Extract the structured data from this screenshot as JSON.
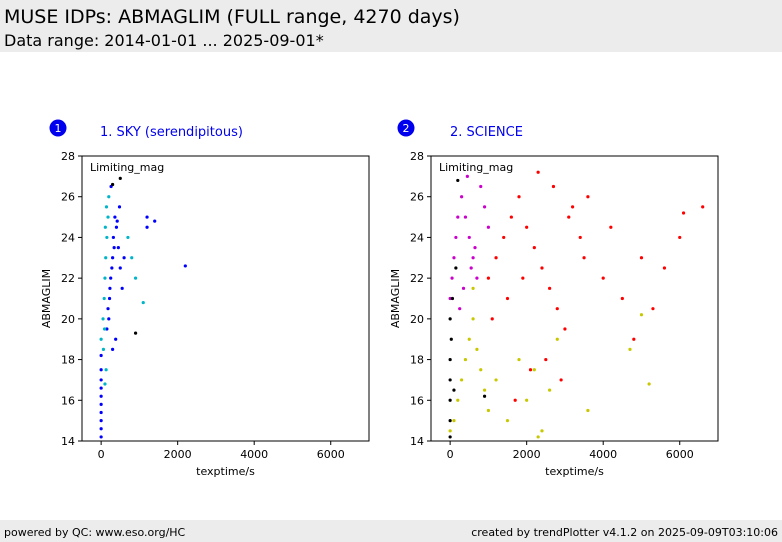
{
  "header": {
    "title": "MUSE IDPs: ABMAGLIM (FULL range, 4270 days)",
    "subtitle": "Data range: 2014-01-01 ... 2025-09-01*"
  },
  "footer": {
    "left": "powered by QC: www.eso.org/HC",
    "right": "created by trendPlotter v4.1.2 on 2025-09-09T03:10:06"
  },
  "chart_data": [
    {
      "type": "scatter",
      "badge": "1",
      "title": "1. SKY (serendipitous)",
      "inner_label": "Limiting_mag",
      "xlabel": "texptime/s",
      "ylabel": "ABMAGLIM",
      "xlim": [
        -500,
        7000
      ],
      "ylim": [
        14,
        28
      ],
      "xticks": [
        0,
        2000,
        4000,
        6000
      ],
      "yticks": [
        14,
        16,
        18,
        20,
        22,
        24,
        26,
        28
      ],
      "series": [
        {
          "color": "#0000ff",
          "x": [
            0,
            0,
            0,
            0,
            0,
            0,
            0,
            0,
            0,
            0,
            200,
            220,
            250,
            300,
            320,
            360,
            400,
            450,
            500,
            550,
            600,
            150,
            180,
            230,
            280,
            340,
            420,
            480,
            260,
            300,
            380,
            1200,
            1200,
            1400,
            2200
          ],
          "y": [
            14.2,
            14.6,
            15.0,
            15.4,
            15.8,
            16.2,
            16.6,
            17.0,
            17.5,
            18.2,
            20.0,
            21.0,
            22.0,
            23.0,
            24.0,
            25.0,
            24.5,
            23.5,
            22.5,
            21.5,
            23.0,
            19.5,
            20.5,
            21.5,
            22.5,
            23.5,
            24.8,
            25.5,
            26.5,
            18.5,
            19.0,
            24.5,
            25.0,
            24.8,
            22.6
          ]
        },
        {
          "color": "#00b5c8",
          "x": [
            0,
            50,
            80,
            100,
            120,
            150,
            180,
            200,
            60,
            90,
            110,
            140,
            700,
            800,
            900,
            1100,
            100,
            130
          ],
          "y": [
            19.0,
            20.0,
            21.0,
            22.0,
            23.0,
            24.0,
            25.0,
            26.0,
            18.5,
            19.5,
            24.5,
            25.5,
            24.0,
            23.0,
            22.0,
            20.8,
            16.8,
            17.5
          ]
        },
        {
          "color": "#000000",
          "x": [
            300,
            500,
            900
          ],
          "y": [
            26.6,
            26.9,
            19.3
          ]
        }
      ]
    },
    {
      "type": "scatter",
      "badge": "2",
      "title": "2. SCIENCE",
      "inner_label": "Limiting_mag",
      "xlabel": "texptime/s",
      "ylabel": "ABMAGLIM",
      "xlim": [
        -500,
        7000
      ],
      "ylim": [
        14,
        28
      ],
      "xticks": [
        0,
        2000,
        4000,
        6000
      ],
      "yticks": [
        14,
        16,
        18,
        20,
        22,
        24,
        26,
        28
      ],
      "series": [
        {
          "color": "#ff0000",
          "x": [
            1000,
            1200,
            1400,
            1600,
            1800,
            2000,
            2200,
            2400,
            2600,
            2800,
            3000,
            3200,
            3400,
            3600,
            1100,
            1500,
            1900,
            2300,
            2700,
            3100,
            3500,
            4000,
            4200,
            4500,
            4800,
            5000,
            5300,
            5600,
            6000,
            6100,
            6600,
            2500,
            2900,
            1700,
            2100
          ],
          "y": [
            22.0,
            23.0,
            24.0,
            25.0,
            26.0,
            24.5,
            23.5,
            22.5,
            21.5,
            20.5,
            19.5,
            25.5,
            24.0,
            26.0,
            20.0,
            21.0,
            22.0,
            27.2,
            26.5,
            25.0,
            23.0,
            22.0,
            24.5,
            21.0,
            19.0,
            23.0,
            20.5,
            22.5,
            24.0,
            25.2,
            25.5,
            18.0,
            17.0,
            16.0,
            17.5
          ]
        },
        {
          "color": "#cc00cc",
          "x": [
            0,
            50,
            100,
            150,
            200,
            300,
            400,
            500,
            600,
            700,
            800,
            900,
            1000,
            250,
            350,
            450,
            550,
            650
          ],
          "y": [
            21.0,
            22.0,
            23.0,
            24.0,
            25.0,
            26.0,
            25.0,
            24.0,
            23.0,
            22.0,
            26.5,
            25.5,
            24.5,
            20.5,
            21.5,
            27.0,
            22.5,
            23.5
          ]
        },
        {
          "color": "#c8c800",
          "x": [
            0,
            100,
            200,
            300,
            400,
            500,
            600,
            700,
            800,
            900,
            1000,
            1200,
            1500,
            1800,
            2000,
            2200,
            2400,
            2600,
            2800,
            3600,
            4700,
            5000,
            5200,
            2300,
            600
          ],
          "y": [
            14.5,
            15.0,
            16.0,
            17.0,
            18.0,
            19.0,
            20.0,
            18.5,
            17.5,
            16.5,
            15.5,
            17.0,
            15.0,
            18.0,
            16.0,
            17.5,
            14.5,
            16.5,
            19.0,
            15.5,
            18.5,
            20.2,
            16.8,
            14.2,
            21.5
          ]
        },
        {
          "color": "#000000",
          "x": [
            0,
            0,
            0,
            0,
            0,
            0,
            30,
            60,
            100,
            150,
            200,
            900
          ],
          "y": [
            14.2,
            15.0,
            16.0,
            17.0,
            18.0,
            20.0,
            19.0,
            21.0,
            16.5,
            22.5,
            26.8,
            16.2
          ]
        }
      ]
    }
  ]
}
